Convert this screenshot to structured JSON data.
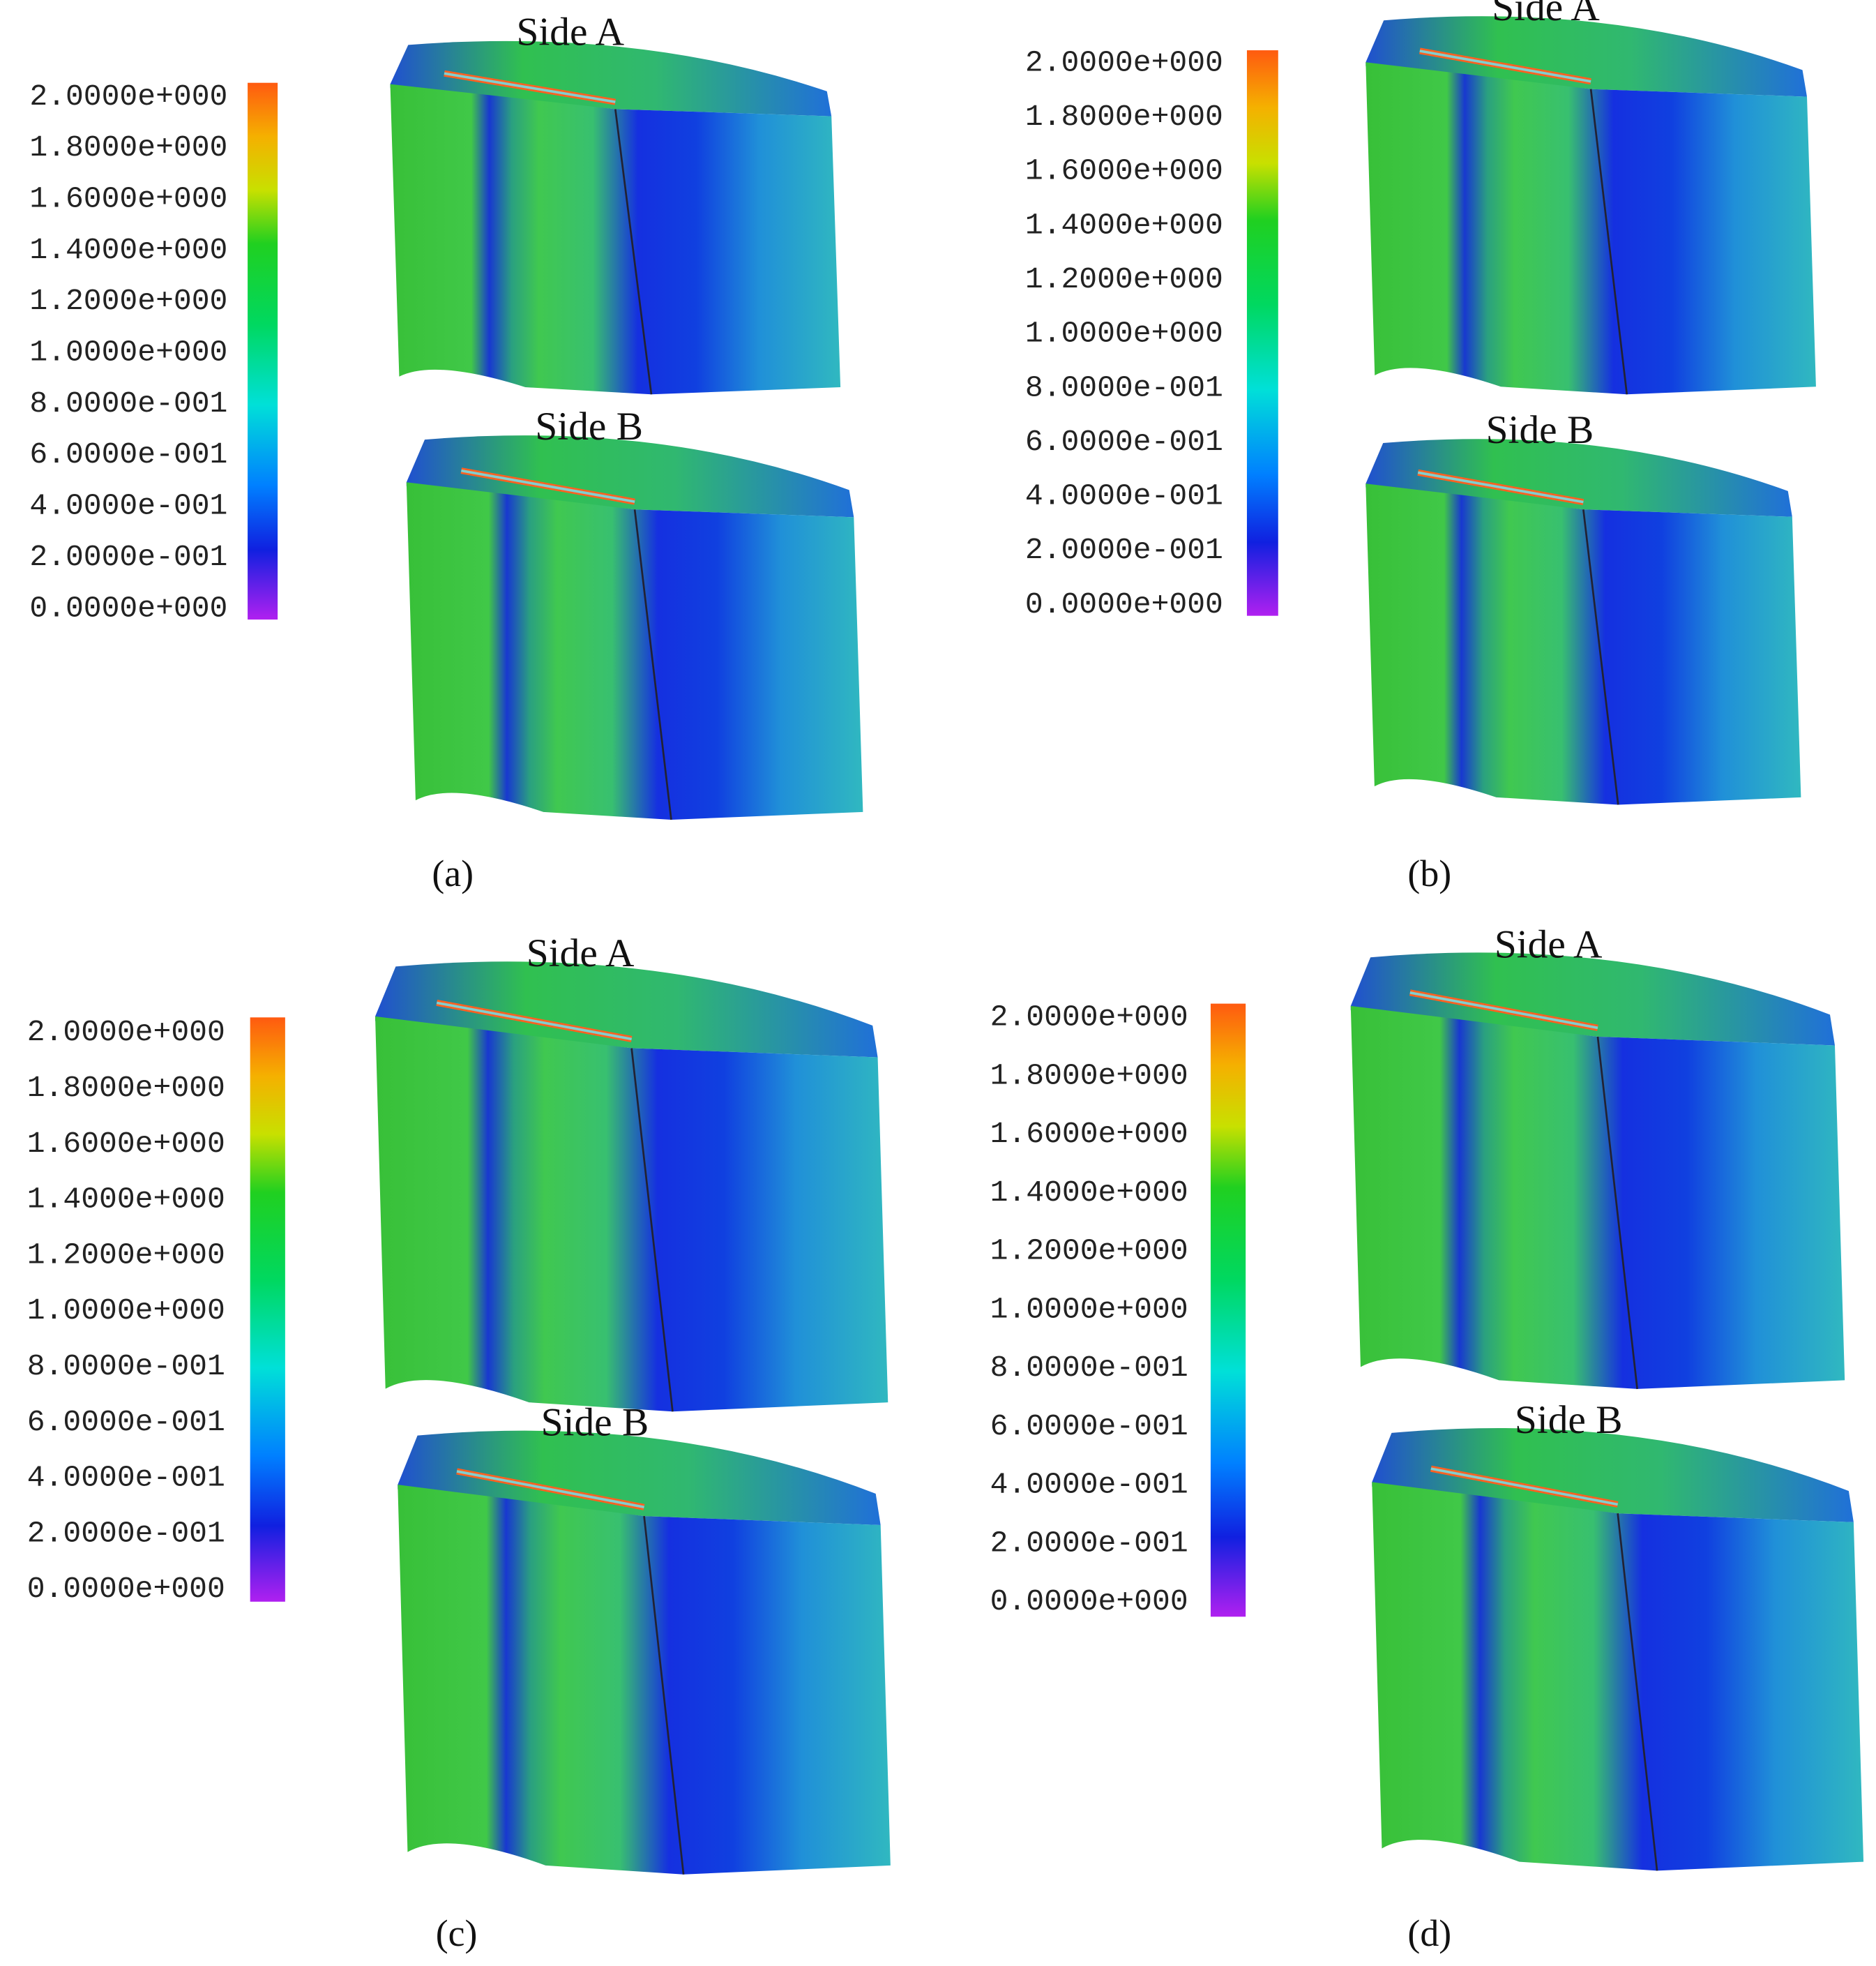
{
  "panels": [
    {
      "label": "(a)",
      "side_a": "Side A",
      "side_b": "Side B",
      "colorbar_labels": [
        "2.0000e+000",
        "1.8000e+000",
        "1.6000e+000",
        "1.4000e+000",
        "1.2000e+000",
        "1.0000e+000",
        "8.0000e-001",
        "6.0000e-001",
        "4.0000e-001",
        "2.0000e-001",
        "0.0000e+000"
      ]
    },
    {
      "label": "(b)",
      "side_a": "Side A",
      "side_b": "Side B",
      "colorbar_labels": [
        "2.0000e+000",
        "1.8000e+000",
        "1.6000e+000",
        "1.4000e+000",
        "1.2000e+000",
        "1.0000e+000",
        "8.0000e-001",
        "6.0000e-001",
        "4.0000e-001",
        "2.0000e-001",
        "0.0000e+000"
      ]
    },
    {
      "label": "(c)",
      "side_a": "Side A",
      "side_b": "Side B",
      "colorbar_labels": [
        "2.0000e+000",
        "1.8000e+000",
        "1.6000e+000",
        "1.4000e+000",
        "1.2000e+000",
        "1.0000e+000",
        "8.0000e-001",
        "6.0000e-001",
        "4.0000e-001",
        "2.0000e-001",
        "0.0000e+000"
      ]
    },
    {
      "label": "(d)",
      "side_a": "Side A",
      "side_b": "Side B",
      "colorbar_labels": [
        "2.0000e+000",
        "1.8000e+000",
        "1.6000e+000",
        "1.4000e+000",
        "1.2000e+000",
        "1.0000e+000",
        "8.0000e-001",
        "6.0000e-001",
        "4.0000e-001",
        "2.0000e-001",
        "0.0000e+000"
      ]
    }
  ]
}
